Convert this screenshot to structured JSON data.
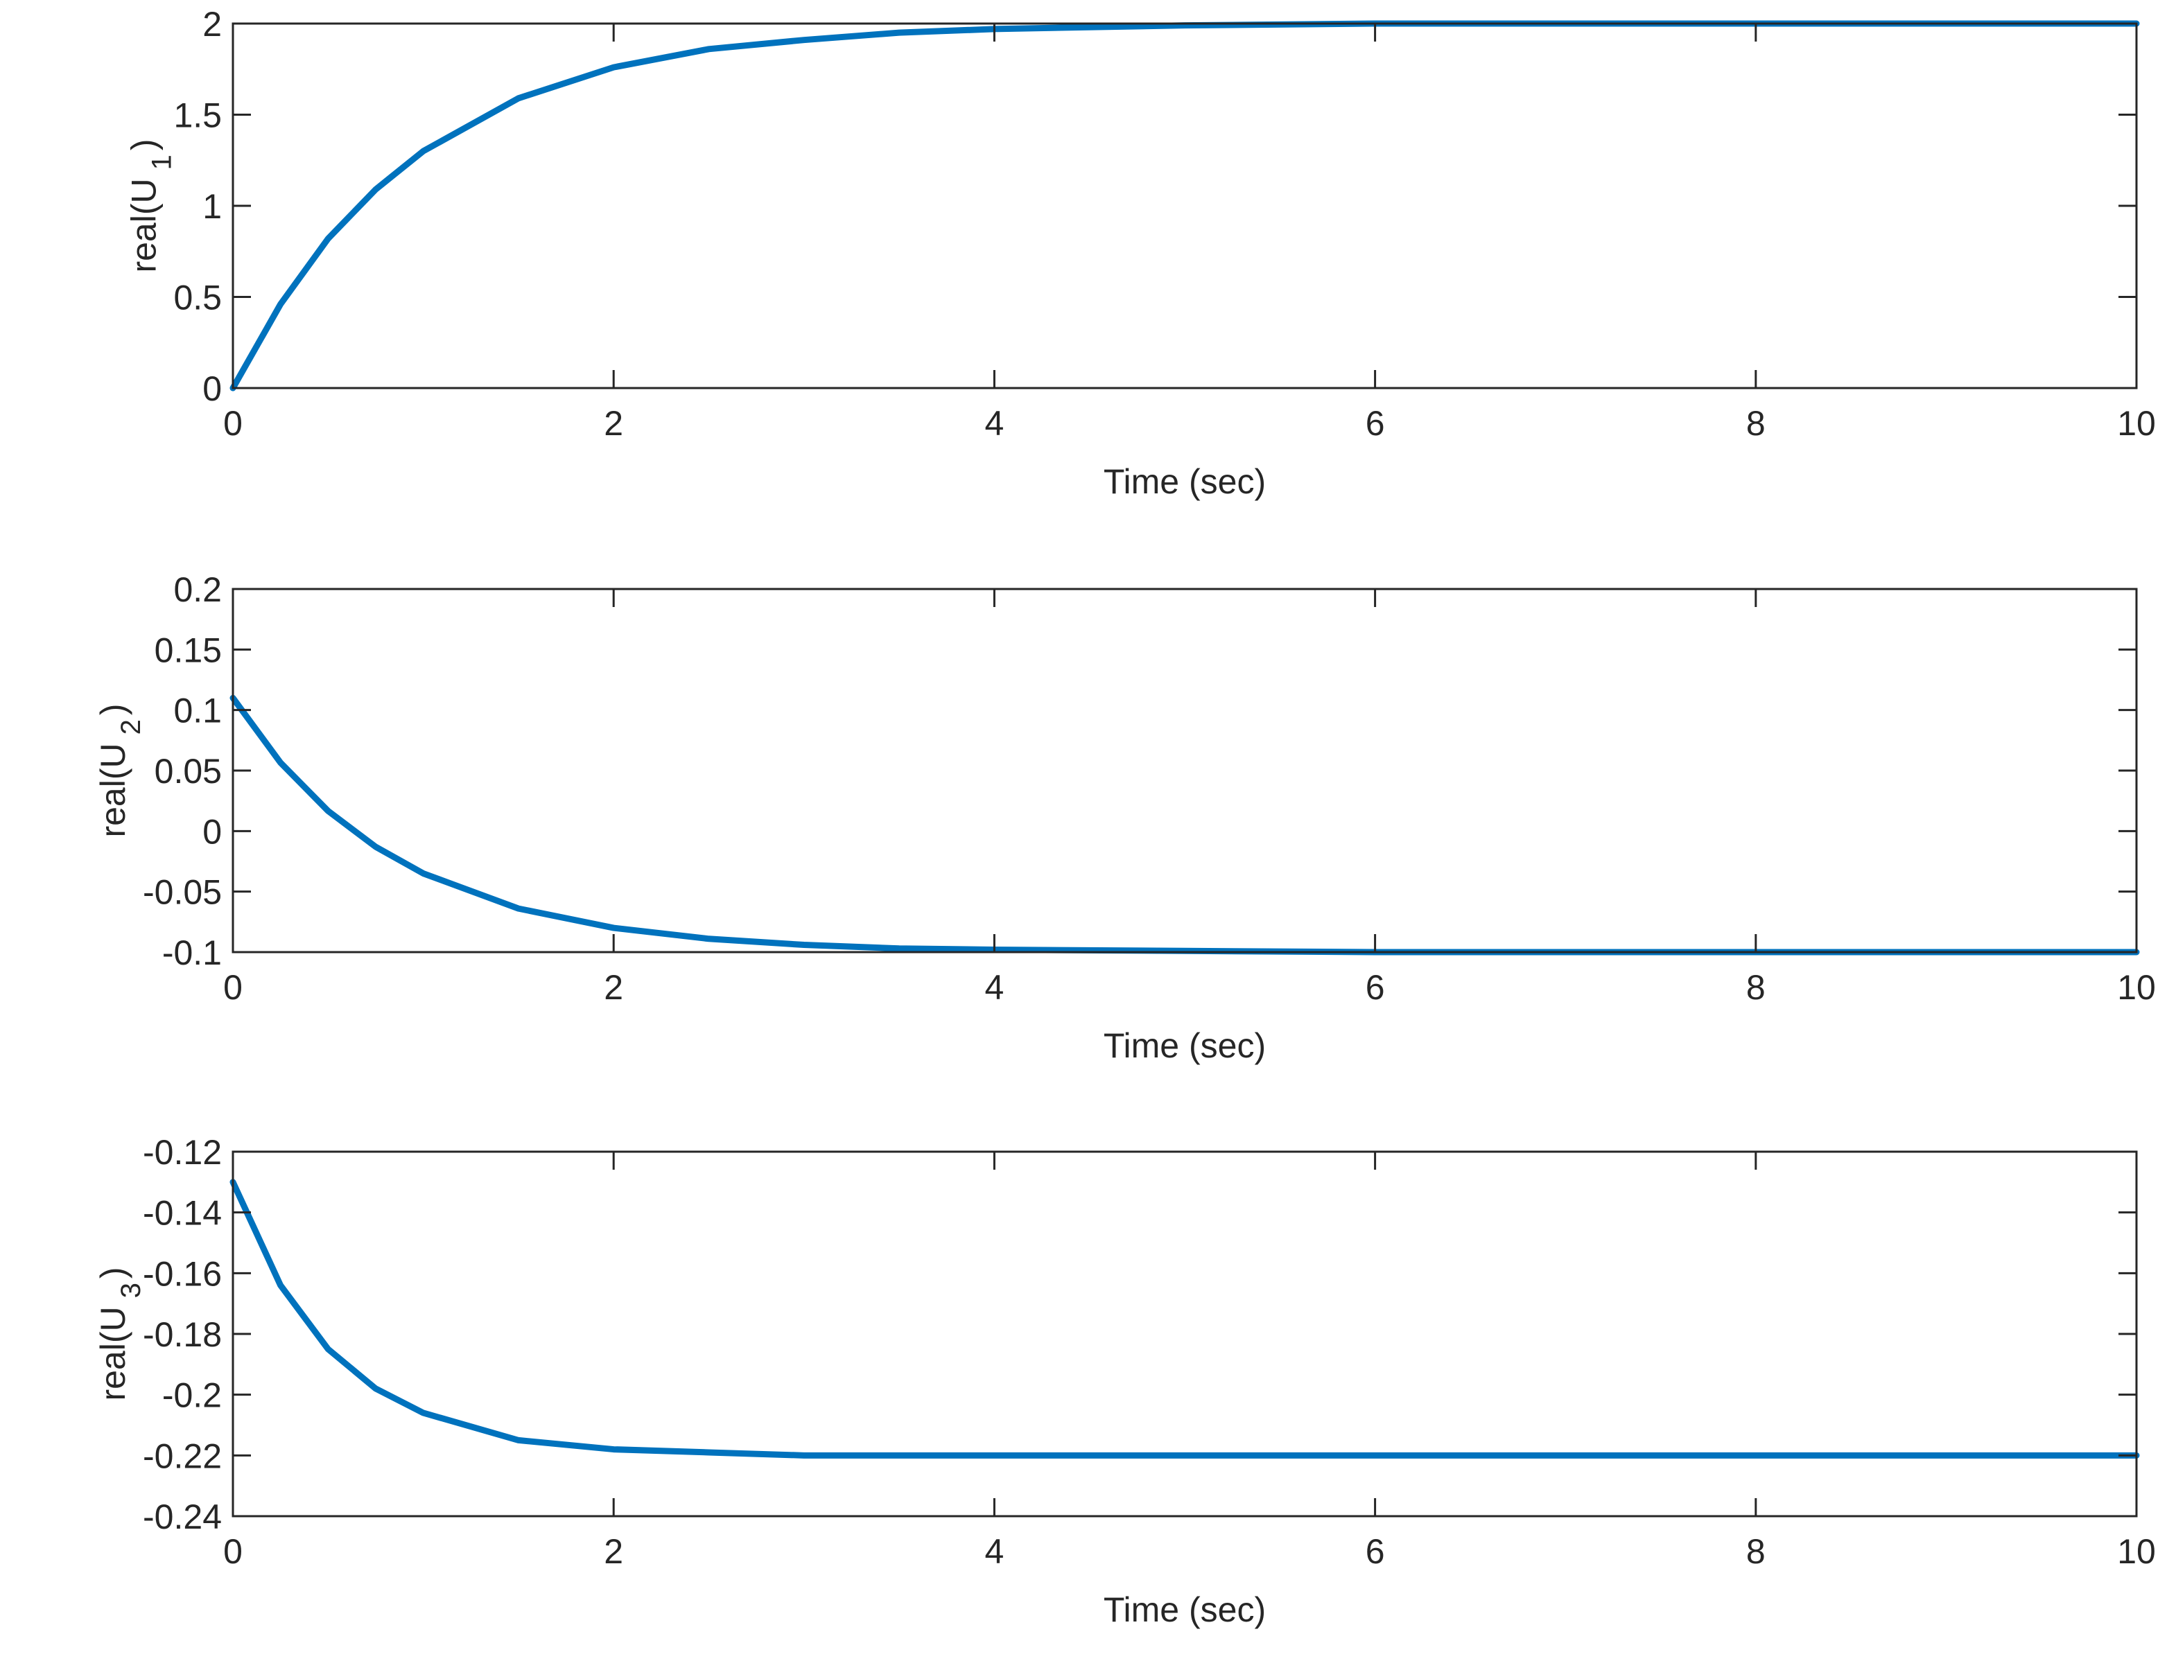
{
  "chart_data": [
    {
      "type": "line",
      "xlabel": "Time (sec)",
      "ylabel": [
        "real(U",
        "1",
        ")"
      ],
      "x": [
        0,
        0.25,
        0.5,
        0.75,
        1,
        1.5,
        2,
        2.5,
        3,
        3.5,
        4,
        5,
        6,
        7,
        8,
        9,
        10
      ],
      "series": [
        {
          "color": "#0072bd",
          "values": [
            0,
            0.46,
            0.82,
            1.09,
            1.3,
            1.59,
            1.76,
            1.86,
            1.91,
            1.95,
            1.97,
            1.99,
            2,
            2,
            2,
            2,
            2
          ]
        }
      ],
      "xlim": [
        0,
        10
      ],
      "xticks": [
        0,
        2,
        4,
        6,
        8,
        10
      ],
      "ylim": [
        0,
        2
      ],
      "yticks": [
        0,
        0.5,
        1,
        1.5,
        2
      ]
    },
    {
      "type": "line",
      "xlabel": "Time (sec)",
      "ylabel": [
        "real(U",
        "2",
        ")"
      ],
      "x": [
        0,
        0.25,
        0.5,
        0.75,
        1,
        1.5,
        2,
        2.5,
        3,
        3.5,
        4,
        5,
        6,
        7,
        8,
        9,
        10
      ],
      "series": [
        {
          "color": "#0072bd",
          "values": [
            0.11,
            0.0565,
            0.0166,
            -0.013,
            -0.035,
            -0.064,
            -0.08,
            -0.089,
            -0.094,
            -0.097,
            -0.098,
            -0.099,
            -0.1,
            -0.1,
            -0.1,
            -0.1,
            -0.1
          ]
        }
      ],
      "xlim": [
        0,
        10
      ],
      "xticks": [
        0,
        2,
        4,
        6,
        8,
        10
      ],
      "ylim": [
        -0.1,
        0.2
      ],
      "yticks": [
        -0.1,
        -0.05,
        0,
        0.05,
        0.1,
        0.15,
        0.2
      ]
    },
    {
      "type": "line",
      "xlabel": "Time (sec)",
      "ylabel": [
        "real(U",
        "3",
        ")"
      ],
      "x": [
        0,
        0.25,
        0.5,
        0.75,
        1,
        1.5,
        2,
        2.5,
        3,
        3.5,
        4,
        5,
        6,
        7,
        8,
        9,
        10
      ],
      "series": [
        {
          "color": "#0072bd",
          "values": [
            -0.13,
            -0.164,
            -0.185,
            -0.198,
            -0.206,
            -0.215,
            -0.218,
            -0.219,
            -0.22,
            -0.22,
            -0.22,
            -0.22,
            -0.22,
            -0.22,
            -0.22,
            -0.22,
            -0.22
          ]
        }
      ],
      "xlim": [
        0,
        10
      ],
      "xticks": [
        0,
        2,
        4,
        6,
        8,
        10
      ],
      "ylim": [
        -0.24,
        -0.12
      ],
      "yticks": [
        -0.24,
        -0.22,
        -0.2,
        -0.18,
        -0.16,
        -0.14,
        -0.12
      ]
    }
  ]
}
